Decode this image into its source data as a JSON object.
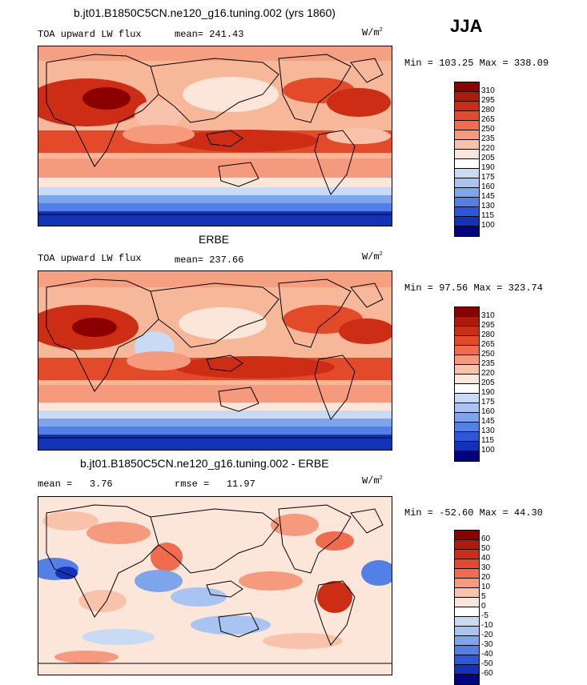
{
  "season": "JJA",
  "chart_data": [
    {
      "type": "heatmap",
      "title": "b.jt01.B1850C5CN.ne120_g16.tuning.002 (yrs 1860)",
      "variable": "TOA upward LW flux",
      "units_base": "W/m",
      "units_exp": "2",
      "mean_label": "mean=",
      "mean": "241.43",
      "min_label": "Min =",
      "min": "103.25",
      "max_label": "Max =",
      "max": "338.09",
      "levels": [
        "310",
        "295",
        "280",
        "265",
        "250",
        "235",
        "220",
        "205",
        "190",
        "175",
        "160",
        "145",
        "130",
        "115",
        "100"
      ],
      "colors": [
        "#8b0000",
        "#b01a0a",
        "#cd2d14",
        "#e24a2a",
        "#ef6d4e",
        "#f59a7c",
        "#f9c3ab",
        "#fce6da",
        "#ffffff",
        "#c9daf5",
        "#a9c4f0",
        "#7ea4ec",
        "#5380e6",
        "#2c57d8",
        "#1133b8",
        "#00047e"
      ]
    },
    {
      "type": "heatmap",
      "title": "ERBE",
      "variable": "TOA upward LW flux",
      "units_base": "W/m",
      "units_exp": "2",
      "mean_label": "mean=",
      "mean": "237.66",
      "min_label": "Min =",
      "min": "97.56",
      "max_label": "Max =",
      "max": "323.74",
      "levels": [
        "310",
        "295",
        "280",
        "265",
        "250",
        "235",
        "220",
        "205",
        "190",
        "175",
        "160",
        "145",
        "130",
        "115",
        "100"
      ],
      "colors": [
        "#8b0000",
        "#b01a0a",
        "#cd2d14",
        "#e24a2a",
        "#ef6d4e",
        "#f59a7c",
        "#f9c3ab",
        "#fce6da",
        "#ffffff",
        "#c9daf5",
        "#a9c4f0",
        "#7ea4ec",
        "#5380e6",
        "#2c57d8",
        "#1133b8",
        "#00047e"
      ]
    },
    {
      "type": "heatmap",
      "title": "b.jt01.B1850C5CN.ne120_g16.tuning.002 - ERBE",
      "units_base": "W/m",
      "units_exp": "2",
      "mean_label": "mean =",
      "mean": "3.76",
      "rmse_label": "rmse =",
      "rmse": "11.97",
      "min_label": "Min =",
      "min": "-52.60",
      "max_label": "Max =",
      "max": "44.30",
      "levels": [
        "60",
        "50",
        "40",
        "30",
        "20",
        "10",
        "5",
        "0",
        "-5",
        "-10",
        "-20",
        "-30",
        "-40",
        "-50",
        "-60"
      ],
      "colors": [
        "#8b0000",
        "#b01a0a",
        "#cd2d14",
        "#e24a2a",
        "#ef6d4e",
        "#f59a7c",
        "#f9c3ab",
        "#fce6da",
        "#ffffff",
        "#c9daf5",
        "#a9c4f0",
        "#7ea4ec",
        "#5380e6",
        "#2c57d8",
        "#1133b8",
        "#00047e"
      ]
    }
  ]
}
